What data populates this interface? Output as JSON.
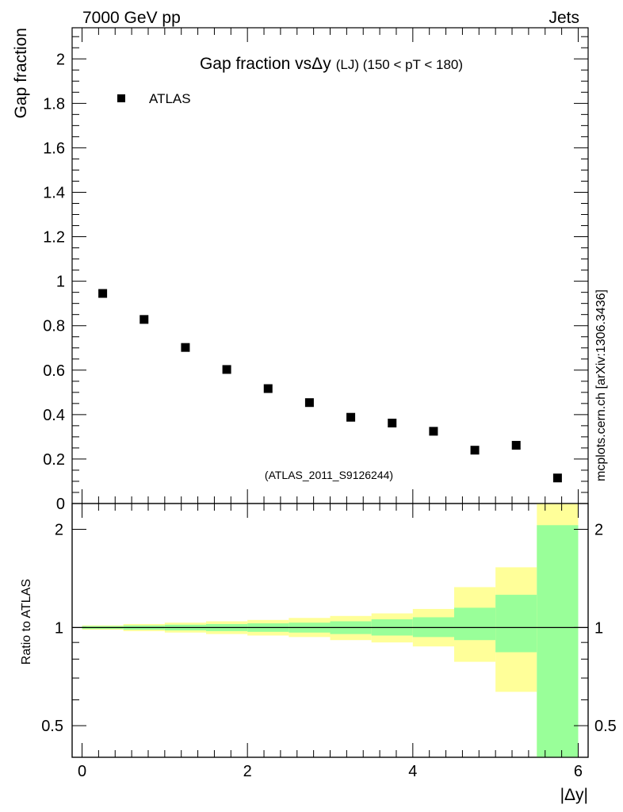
{
  "header": {
    "left": "7000 GeV pp",
    "right": "Jets"
  },
  "side_note": "mcplots.cern.ch [arXiv:1306.3436]",
  "colors": {
    "marker": "#000000",
    "band_outer": "#ffff99",
    "band_inner": "#99ff99",
    "ref_line": "#000000",
    "watermark": "#999999"
  },
  "chart_data": [
    {
      "type": "scatter",
      "title_main": "Gap fraction vs",
      "title_symbol": "Δy",
      "title_sub": "(LJ) (150 < pT < 180)",
      "ylabel": "Gap fraction",
      "watermark": "(ATLAS_2011_S9126244)",
      "xlim": [
        -0.12,
        6.12
      ],
      "ylim": [
        0,
        2.14
      ],
      "y_ticks": [
        "0",
        "0.2",
        "0.4",
        "0.6",
        "0.8",
        "1",
        "1.2",
        "1.4",
        "1.6",
        "1.8",
        "2"
      ],
      "series": [
        {
          "name": "ATLAS",
          "x": [
            0.25,
            0.75,
            1.25,
            1.75,
            2.25,
            2.75,
            3.25,
            3.75,
            4.25,
            4.75,
            5.25,
            5.75
          ],
          "y": [
            0.945,
            0.828,
            0.702,
            0.603,
            0.517,
            0.454,
            0.388,
            0.362,
            0.325,
            0.24,
            0.262,
            0.115
          ]
        }
      ],
      "legend_position": "top-left"
    },
    {
      "type": "area",
      "ylabel": "Ratio to ATLAS",
      "xlabel": "|Δy|",
      "y_scale": "log",
      "ylim": [
        0.4,
        2.4
      ],
      "y_ticks": [
        "0.5",
        "1",
        "2"
      ],
      "x_ticks": [
        "0",
        "2",
        "4",
        "6"
      ],
      "reference": 1,
      "bins": [
        {
          "lo": 0.0,
          "hi": 0.5,
          "inner": [
            0.99,
            1.01
          ],
          "outer": [
            0.985,
            1.015
          ]
        },
        {
          "lo": 0.5,
          "hi": 1.0,
          "inner": [
            0.985,
            1.015
          ],
          "outer": [
            0.975,
            1.025
          ]
        },
        {
          "lo": 1.0,
          "hi": 1.5,
          "inner": [
            0.98,
            1.02
          ],
          "outer": [
            0.965,
            1.035
          ]
        },
        {
          "lo": 1.5,
          "hi": 2.0,
          "inner": [
            0.975,
            1.025
          ],
          "outer": [
            0.955,
            1.045
          ]
        },
        {
          "lo": 2.0,
          "hi": 2.5,
          "inner": [
            0.97,
            1.03
          ],
          "outer": [
            0.945,
            1.055
          ]
        },
        {
          "lo": 2.5,
          "hi": 3.0,
          "inner": [
            0.965,
            1.035
          ],
          "outer": [
            0.935,
            1.07
          ]
        },
        {
          "lo": 3.0,
          "hi": 3.5,
          "inner": [
            0.955,
            1.045
          ],
          "outer": [
            0.915,
            1.085
          ]
        },
        {
          "lo": 3.5,
          "hi": 4.0,
          "inner": [
            0.945,
            1.06
          ],
          "outer": [
            0.9,
            1.105
          ]
        },
        {
          "lo": 4.0,
          "hi": 4.5,
          "inner": [
            0.935,
            1.075
          ],
          "outer": [
            0.875,
            1.14
          ]
        },
        {
          "lo": 4.5,
          "hi": 5.0,
          "inner": [
            0.915,
            1.15
          ],
          "outer": [
            0.785,
            1.33
          ]
        },
        {
          "lo": 5.0,
          "hi": 5.5,
          "inner": [
            0.84,
            1.26
          ],
          "outer": [
            0.635,
            1.53
          ]
        },
        {
          "lo": 5.5,
          "hi": 6.0,
          "inner": [
            0.4,
            2.06
          ],
          "outer": [
            0.4,
            2.4
          ]
        }
      ]
    }
  ]
}
